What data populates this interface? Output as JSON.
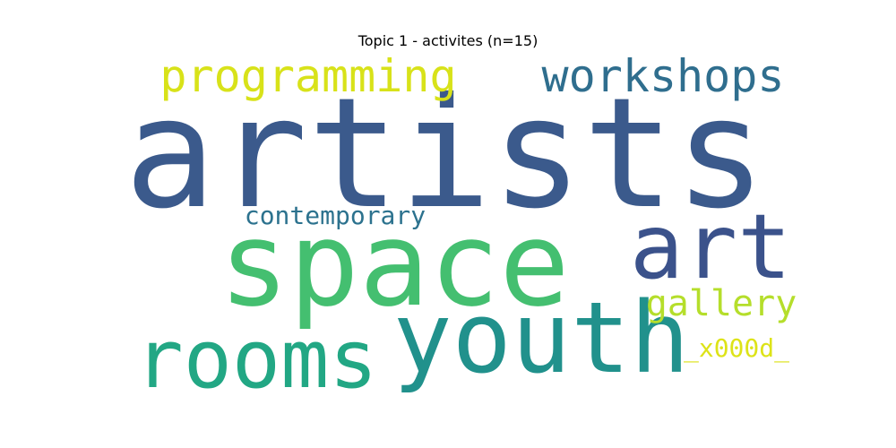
{
  "chart_data": {
    "type": "wordcloud",
    "title": "Topic 1 - activites (n=15)",
    "words": [
      {
        "text": "artists",
        "color": "#3b5a8c"
      },
      {
        "text": "space",
        "color": "#44bf70"
      },
      {
        "text": "art",
        "color": "#3b528b"
      },
      {
        "text": "youth",
        "color": "#21918c"
      },
      {
        "text": "rooms",
        "color": "#22a784"
      },
      {
        "text": "workshops",
        "color": "#2f6e8e"
      },
      {
        "text": "programming",
        "color": "#d8e219"
      },
      {
        "text": "contemporary",
        "color": "#2c728e"
      },
      {
        "text": "gallery",
        "color": "#b5de2b"
      },
      {
        "text": "_x000d_",
        "color": "#dde318"
      }
    ]
  }
}
